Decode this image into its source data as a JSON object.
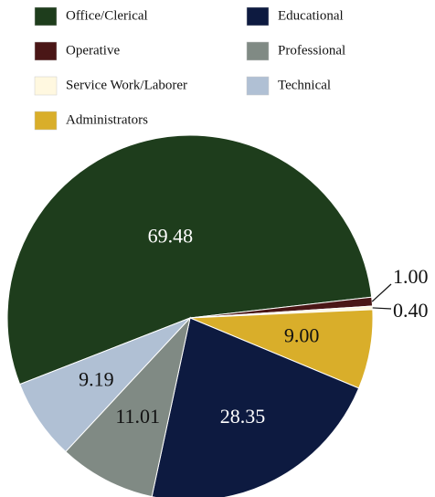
{
  "chart_data": {
    "type": "pie",
    "categories": [
      "Office/Clerical",
      "Operative",
      "Service Work/Laborer",
      "Administrators",
      "Educational",
      "Professional",
      "Technical"
    ],
    "values": [
      69.48,
      1.0,
      0.4,
      9.0,
      28.35,
      11.01,
      9.19
    ],
    "value_labels": [
      "69.48",
      "1.00",
      "0.40",
      "9.00",
      "28.35",
      "11.01",
      "9.19"
    ],
    "colors": [
      "#1e3d1c",
      "#4a1616",
      "#fff8e0",
      "#d9ae2a",
      "#0d1a40",
      "#808a84",
      "#b0c0d4"
    ]
  }
}
